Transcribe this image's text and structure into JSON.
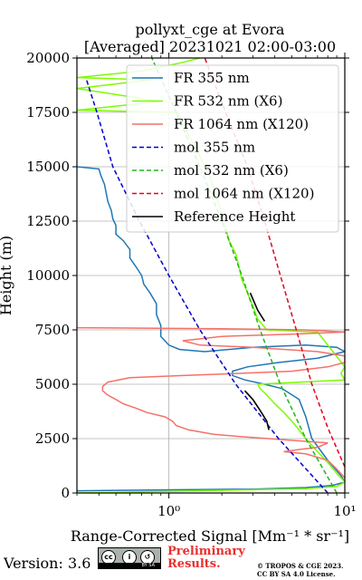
{
  "title_line1": "pollyxt_cge at Evora",
  "title_line2": "[Averaged] 20231021 02:00-03:00",
  "footer": {
    "version": "Version: 3.6",
    "cc_badge": "cc-by-sa-icon",
    "cc_sub": "BY  SA",
    "preliminary_line1": "Preliminary",
    "preliminary_line2": "Results.",
    "copyright_line1": "© TROPOS & CGE 2023.",
    "copyright_line2": "CC BY SA 4.0 License."
  },
  "chart_data": {
    "type": "line",
    "xlabel": "Range-Corrected Signal [Mm⁻¹ * sr⁻¹]",
    "ylabel": "Height (m)",
    "xscale": "log",
    "xlim": [
      0.3,
      10
    ],
    "ylim": [
      0,
      20000
    ],
    "x_ticks": [
      "10⁰",
      "10¹"
    ],
    "y_ticks": [
      0,
      2500,
      5000,
      7500,
      10000,
      12500,
      15000,
      17500,
      20000
    ],
    "grid": true,
    "legend_position": "top-right",
    "series": [
      {
        "name": "FR 355 nm",
        "style": "solid",
        "color": "#1f77b4",
        "points": [
          [
            0.3,
            100
          ],
          [
            1.2,
            150
          ],
          [
            3,
            180
          ],
          [
            6,
            250
          ],
          [
            8.5,
            350
          ],
          [
            10,
            500
          ],
          [
            9.5,
            800
          ],
          [
            8,
            1500
          ],
          [
            6.5,
            2500
          ],
          [
            6,
            3500
          ],
          [
            5.5,
            4300
          ],
          [
            4.4,
            4800
          ],
          [
            3.5,
            5000
          ],
          [
            2.7,
            5200
          ],
          [
            2.3,
            5400
          ],
          [
            2.3,
            5600
          ],
          [
            2.8,
            5800
          ],
          [
            4.2,
            6000
          ],
          [
            7,
            6200
          ],
          [
            10,
            6500
          ],
          [
            9,
            6700
          ],
          [
            6,
            6800
          ],
          [
            3,
            6700
          ],
          [
            1.6,
            6500
          ],
          [
            1.15,
            6600
          ],
          [
            1,
            6800
          ],
          [
            0.9,
            7200
          ],
          [
            0.9,
            7700
          ],
          [
            0.85,
            8200
          ],
          [
            0.85,
            8700
          ],
          [
            0.78,
            9200
          ],
          [
            0.72,
            9600
          ],
          [
            0.7,
            10000
          ],
          [
            0.65,
            10400
          ],
          [
            0.6,
            10800
          ],
          [
            0.6,
            11200
          ],
          [
            0.55,
            11600
          ],
          [
            0.5,
            11900
          ],
          [
            0.5,
            12300
          ],
          [
            0.48,
            12600
          ],
          [
            0.47,
            13000
          ],
          [
            0.45,
            13400
          ],
          [
            0.44,
            13800
          ],
          [
            0.43,
            14200
          ],
          [
            0.41,
            14600
          ],
          [
            0.4,
            14900
          ],
          [
            0.3,
            15000
          ]
        ]
      },
      {
        "name": "FR 532 nm (X6)",
        "style": "solid",
        "color": "#7cfc00",
        "points": [
          [
            0.3,
            0
          ],
          [
            3,
            150
          ],
          [
            6,
            200
          ],
          [
            9,
            300
          ],
          [
            10,
            500
          ],
          [
            9,
            900
          ],
          [
            8,
            1400
          ],
          [
            7,
            1900
          ],
          [
            6,
            2500
          ],
          [
            5.5,
            2900
          ],
          [
            5,
            3300
          ],
          [
            4.5,
            3700
          ],
          [
            4,
            4100
          ],
          [
            3.6,
            4500
          ],
          [
            3.3,
            4800
          ],
          [
            3.2,
            5000
          ],
          [
            10,
            5200
          ],
          [
            9.5,
            5500
          ],
          [
            10,
            5800
          ],
          [
            7,
            7400
          ],
          [
            3.6,
            7500
          ],
          [
            3.2,
            8000
          ],
          [
            3,
            8600
          ],
          [
            2.8,
            9200
          ],
          [
            2.6,
            9800
          ],
          [
            2.5,
            10400
          ],
          [
            2.4,
            11000
          ],
          [
            2.2,
            11600
          ],
          [
            2.1,
            12200
          ],
          [
            2.0,
            12800
          ],
          [
            1.9,
            13400
          ],
          [
            1.8,
            14000
          ],
          [
            1.7,
            14600
          ],
          [
            1.55,
            15200
          ],
          [
            1.45,
            15800
          ],
          [
            1.3,
            16400
          ],
          [
            1.2,
            17000
          ],
          [
            1.1,
            17500
          ],
          [
            0.3,
            17600
          ],
          [
            0.9,
            18000
          ],
          [
            0.3,
            18600
          ],
          [
            0.8,
            19000
          ],
          [
            0.3,
            19100
          ],
          [
            0.7,
            19400
          ],
          [
            1.2,
            19800
          ],
          [
            1.5,
            20000
          ]
        ]
      },
      {
        "name": "FR 1064 nm (X120)",
        "style": "solid",
        "color": "#f4716a",
        "points": [
          [
            10,
            700
          ],
          [
            9,
            1100
          ],
          [
            8,
            1500
          ],
          [
            6,
            1800
          ],
          [
            4.5,
            1900
          ],
          [
            5.5,
            2000
          ],
          [
            7,
            2100
          ],
          [
            8,
            2300
          ],
          [
            2.5,
            2600
          ],
          [
            1.8,
            2700
          ],
          [
            1.3,
            2900
          ],
          [
            1.1,
            3100
          ],
          [
            1.05,
            3300
          ],
          [
            0.95,
            3500
          ],
          [
            0.75,
            3700
          ],
          [
            0.65,
            3900
          ],
          [
            0.55,
            4100
          ],
          [
            0.5,
            4300
          ],
          [
            0.45,
            4500
          ],
          [
            0.42,
            4700
          ],
          [
            0.42,
            4900
          ],
          [
            0.45,
            5100
          ],
          [
            0.6,
            5300
          ],
          [
            1.2,
            5400
          ],
          [
            2.5,
            5500
          ],
          [
            5,
            5600
          ],
          [
            8,
            5800
          ],
          [
            10,
            6000
          ],
          [
            10,
            6300
          ],
          [
            7,
            6500
          ],
          [
            3,
            6700
          ],
          [
            1.5,
            6800
          ],
          [
            1.2,
            7000
          ],
          [
            2,
            7200
          ],
          [
            5,
            7300
          ],
          [
            10,
            7400
          ],
          [
            6,
            7500
          ],
          [
            2,
            7550
          ],
          [
            0.3,
            7600
          ]
        ]
      },
      {
        "name": "mol 355 nm",
        "style": "dashed",
        "color": "#0000cd",
        "points": [
          [
            8,
            0
          ],
          [
            4.2,
            2500
          ],
          [
            2.4,
            5000
          ],
          [
            1.5,
            7500
          ],
          [
            1.0,
            10000
          ],
          [
            0.68,
            12500
          ],
          [
            0.48,
            15000
          ],
          [
            0.39,
            17500
          ],
          [
            0.34,
            19000
          ]
        ]
      },
      {
        "name": "mol 532 nm (X6)",
        "style": "dashed",
        "color": "#22b322",
        "points": [
          [
            9,
            0
          ],
          [
            6,
            2500
          ],
          [
            4.3,
            5000
          ],
          [
            3.3,
            7500
          ],
          [
            2.6,
            10000
          ],
          [
            2.0,
            12500
          ],
          [
            1.5,
            15000
          ],
          [
            1.1,
            17500
          ],
          [
            0.8,
            20000
          ]
        ]
      },
      {
        "name": "mol 1064 nm (X120)",
        "style": "dashed",
        "color": "#e8001c",
        "points": [
          [
            10,
            1200
          ],
          [
            8,
            3000
          ],
          [
            6.5,
            5000
          ],
          [
            5.3,
            7500
          ],
          [
            4.3,
            10000
          ],
          [
            3.5,
            12500
          ],
          [
            2.8,
            15000
          ],
          [
            2.1,
            17500
          ],
          [
            1.6,
            20000
          ]
        ]
      },
      {
        "name": "Reference Height",
        "style": "solid",
        "color": "#000000",
        "points": [
          [
            2.7,
            4700
          ],
          [
            3,
            4300
          ],
          [
            3.3,
            3800
          ],
          [
            3.6,
            3300
          ],
          [
            3.7,
            2900
          ],
          [
            2.9,
            9200
          ],
          [
            3.2,
            8400
          ],
          [
            3.5,
            7900
          ]
        ]
      }
    ]
  }
}
